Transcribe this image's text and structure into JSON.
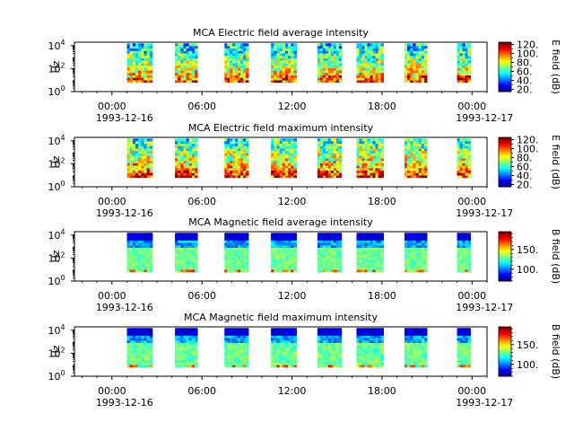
{
  "chart_data": [
    {
      "type": "heatmap",
      "title": "MCA  Electric field average intensity",
      "ylabel": "Hz",
      "colorbar_label": "E field (dB)",
      "colorbar_ticks": [
        "20.",
        "40.",
        "60.",
        "80.",
        "100.",
        "120."
      ],
      "colorbar_range": [
        15,
        125
      ],
      "y_ticks": [
        {
          "base": "10",
          "exp": "0"
        },
        {
          "base": "10",
          "exp": "2"
        },
        {
          "base": "10",
          "exp": "4"
        }
      ],
      "x_ticks": [
        "00:00",
        "06:00",
        "12:00",
        "18:00",
        "00:00"
      ],
      "x_dates": [
        "1993-12-16",
        "1993-12-17"
      ],
      "x_range_hours": [
        -2.5,
        25
      ],
      "y_log_range": [
        0,
        4.3
      ],
      "data_blocks_hours": [
        [
          1.0,
          2.7
        ],
        [
          4.2,
          5.7
        ],
        [
          7.5,
          9.1
        ],
        [
          10.6,
          12.3
        ],
        [
          13.7,
          15.3
        ],
        [
          16.3,
          18.1
        ],
        [
          19.5,
          21.0
        ],
        [
          23.0,
          23.9
        ]
      ],
      "field": "electric",
      "peak": "average"
    },
    {
      "type": "heatmap",
      "title": "MCA  Electric field maximum intensity",
      "ylabel": "Hz",
      "colorbar_label": "E field (dB)",
      "colorbar_ticks": [
        "20.",
        "40.",
        "60.",
        "80.",
        "100.",
        "120."
      ],
      "colorbar_range": [
        15,
        125
      ],
      "y_ticks": [
        {
          "base": "10",
          "exp": "0"
        },
        {
          "base": "10",
          "exp": "2"
        },
        {
          "base": "10",
          "exp": "4"
        }
      ],
      "x_ticks": [
        "00:00",
        "06:00",
        "12:00",
        "18:00",
        "00:00"
      ],
      "x_dates": [
        "1993-12-16",
        "1993-12-17"
      ],
      "x_range_hours": [
        -2.5,
        25
      ],
      "y_log_range": [
        0,
        4.3
      ],
      "data_blocks_hours": [
        [
          1.0,
          2.7
        ],
        [
          4.2,
          5.7
        ],
        [
          7.5,
          9.1
        ],
        [
          10.6,
          12.3
        ],
        [
          13.7,
          15.3
        ],
        [
          16.3,
          18.1
        ],
        [
          19.5,
          21.0
        ],
        [
          23.0,
          23.9
        ]
      ],
      "field": "electric",
      "peak": "maximum"
    },
    {
      "type": "heatmap",
      "title": "MCA  Magnetic field average intensity",
      "ylabel": "Hz",
      "colorbar_label": "B field (dB)",
      "colorbar_ticks": [
        "100.",
        "150."
      ],
      "colorbar_range": [
        70,
        195
      ],
      "y_ticks": [
        {
          "base": "10",
          "exp": "0"
        },
        {
          "base": "10",
          "exp": "2"
        },
        {
          "base": "10",
          "exp": "4"
        }
      ],
      "x_ticks": [
        "00:00",
        "06:00",
        "12:00",
        "18:00",
        "00:00"
      ],
      "x_dates": [
        "1993-12-16",
        "1993-12-17"
      ],
      "x_range_hours": [
        -2.5,
        25
      ],
      "y_log_range": [
        0,
        4.3
      ],
      "data_blocks_hours": [
        [
          1.0,
          2.7
        ],
        [
          4.2,
          5.7
        ],
        [
          7.5,
          9.1
        ],
        [
          10.6,
          12.3
        ],
        [
          13.7,
          15.3
        ],
        [
          16.3,
          18.1
        ],
        [
          19.5,
          21.0
        ],
        [
          23.0,
          23.9
        ]
      ],
      "field": "magnetic",
      "peak": "average"
    },
    {
      "type": "heatmap",
      "title": "MCA  Magnetic field maximum intensity",
      "ylabel": "Hz",
      "colorbar_label": "B field (dB)",
      "colorbar_ticks": [
        "100.",
        "150."
      ],
      "colorbar_range": [
        70,
        195
      ],
      "y_ticks": [
        {
          "base": "10",
          "exp": "0"
        },
        {
          "base": "10",
          "exp": "2"
        },
        {
          "base": "10",
          "exp": "4"
        }
      ],
      "x_ticks": [
        "00:00",
        "06:00",
        "12:00",
        "18:00",
        "00:00"
      ],
      "x_dates": [
        "1993-12-16",
        "1993-12-17"
      ],
      "x_range_hours": [
        -2.5,
        25
      ],
      "y_log_range": [
        0,
        4.3
      ],
      "data_blocks_hours": [
        [
          1.0,
          2.7
        ],
        [
          4.2,
          5.7
        ],
        [
          7.5,
          9.1
        ],
        [
          10.6,
          12.3
        ],
        [
          13.7,
          15.3
        ],
        [
          16.3,
          18.1
        ],
        [
          19.5,
          21.0
        ],
        [
          23.0,
          23.9
        ]
      ],
      "field": "magnetic",
      "peak": "maximum"
    }
  ]
}
